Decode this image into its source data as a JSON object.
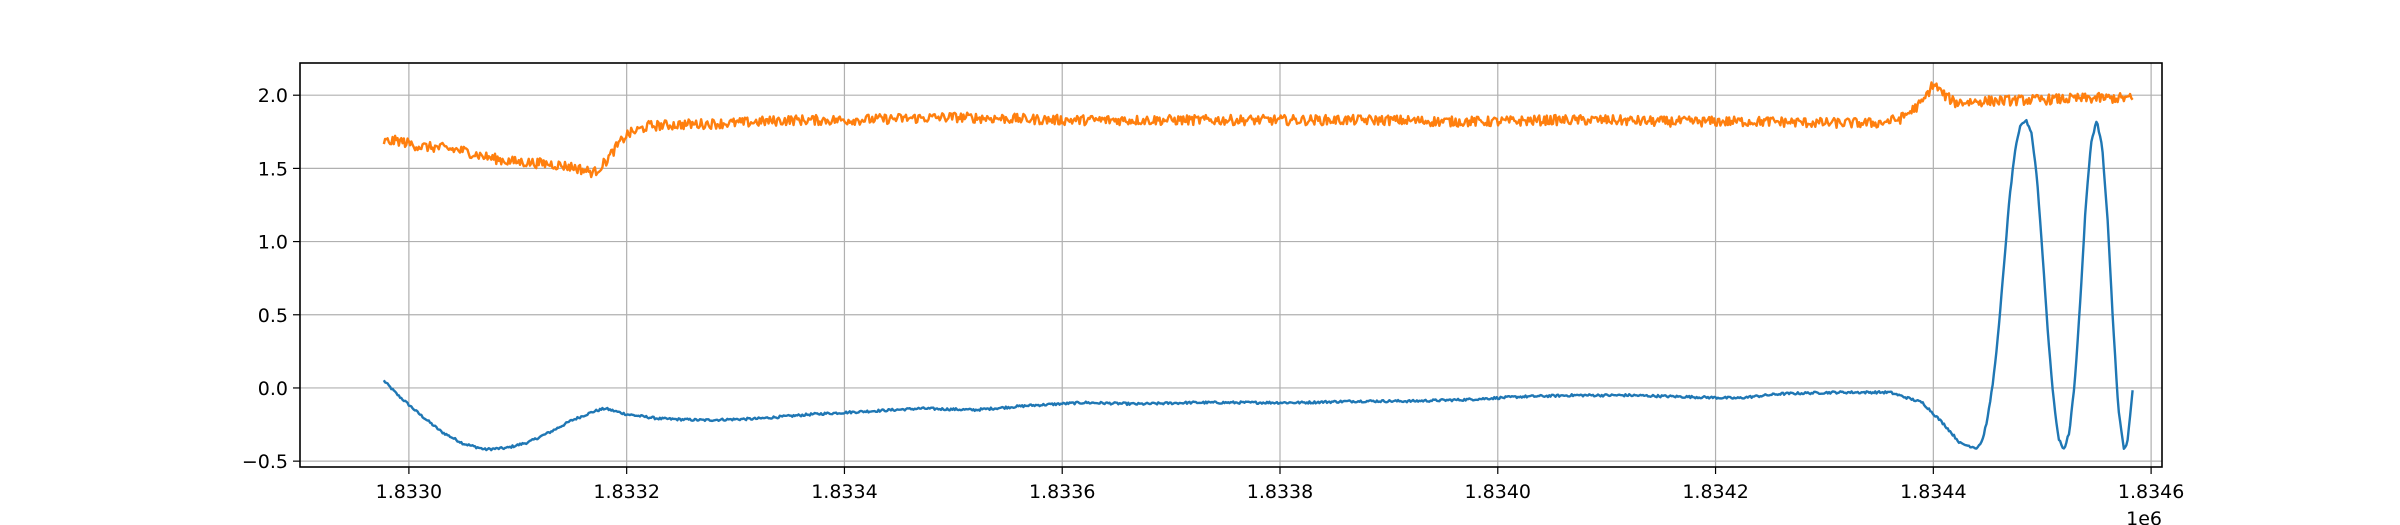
{
  "chart_data": {
    "type": "line",
    "x_offset_label": "1e6",
    "xlim": [
      1.8329,
      1.83461
    ],
    "ylim": [
      -0.54,
      2.22
    ],
    "grid": true,
    "x_ticks": [
      1.833,
      1.8332,
      1.8334,
      1.8336,
      1.8338,
      1.834,
      1.8342,
      1.8344,
      1.8346
    ],
    "x_tick_labels": [
      "1.8330",
      "1.8332",
      "1.8334",
      "1.8336",
      "1.8338",
      "1.8340",
      "1.8342",
      "1.8344",
      "1.8346"
    ],
    "y_ticks": [
      -0.5,
      0.0,
      0.5,
      1.0,
      1.5,
      2.0
    ],
    "y_tick_labels": [
      "−0.5",
      "0.0",
      "0.5",
      "1.0",
      "1.5",
      "2.0"
    ],
    "series": [
      {
        "color": "#1f77b4",
        "noise": 0.008,
        "points": [
          [
            1.832977,
            0.05
          ],
          [
            1.83299,
            -0.05
          ],
          [
            1.83301,
            -0.18
          ],
          [
            1.83303,
            -0.3
          ],
          [
            1.83305,
            -0.38
          ],
          [
            1.83307,
            -0.42
          ],
          [
            1.83309,
            -0.41
          ],
          [
            1.83311,
            -0.37
          ],
          [
            1.83313,
            -0.3
          ],
          [
            1.83315,
            -0.22
          ],
          [
            1.83317,
            -0.16
          ],
          [
            1.83318,
            -0.14
          ],
          [
            1.8332,
            -0.18
          ],
          [
            1.83323,
            -0.21
          ],
          [
            1.83327,
            -0.22
          ],
          [
            1.83332,
            -0.21
          ],
          [
            1.83337,
            -0.18
          ],
          [
            1.83342,
            -0.16
          ],
          [
            1.83347,
            -0.14
          ],
          [
            1.83352,
            -0.15
          ],
          [
            1.83357,
            -0.12
          ],
          [
            1.83362,
            -0.1
          ],
          [
            1.83367,
            -0.11
          ],
          [
            1.83372,
            -0.1
          ],
          [
            1.83377,
            -0.1
          ],
          [
            1.83382,
            -0.1
          ],
          [
            1.83387,
            -0.09
          ],
          [
            1.83392,
            -0.09
          ],
          [
            1.83397,
            -0.08
          ],
          [
            1.83402,
            -0.06
          ],
          [
            1.83407,
            -0.05
          ],
          [
            1.83412,
            -0.05
          ],
          [
            1.83417,
            -0.06
          ],
          [
            1.83422,
            -0.07
          ],
          [
            1.83426,
            -0.04
          ],
          [
            1.83431,
            -0.03
          ],
          [
            1.83436,
            -0.03
          ],
          [
            1.83439,
            -0.1
          ],
          [
            1.83441,
            -0.25
          ],
          [
            1.834425,
            -0.38
          ],
          [
            1.83444,
            -0.41
          ],
          [
            1.834445,
            -0.36
          ],
          [
            1.83445,
            -0.2
          ],
          [
            1.834455,
            0.05
          ],
          [
            1.83446,
            0.4
          ],
          [
            1.834465,
            0.85
          ],
          [
            1.83447,
            1.3
          ],
          [
            1.834475,
            1.62
          ],
          [
            1.83448,
            1.79
          ],
          [
            1.834485,
            1.83
          ],
          [
            1.83449,
            1.75
          ],
          [
            1.834495,
            1.45
          ],
          [
            1.8345,
            0.95
          ],
          [
            1.834505,
            0.4
          ],
          [
            1.83451,
            -0.05
          ],
          [
            1.834515,
            -0.35
          ],
          [
            1.83452,
            -0.42
          ],
          [
            1.834525,
            -0.3
          ],
          [
            1.83453,
            0.05
          ],
          [
            1.834535,
            0.6
          ],
          [
            1.83454,
            1.25
          ],
          [
            1.834545,
            1.68
          ],
          [
            1.83455,
            1.83
          ],
          [
            1.834555,
            1.65
          ],
          [
            1.83456,
            1.15
          ],
          [
            1.834565,
            0.45
          ],
          [
            1.83457,
            -0.15
          ],
          [
            1.834575,
            -0.42
          ],
          [
            1.834578,
            -0.38
          ],
          [
            1.83458,
            -0.25
          ],
          [
            1.834583,
            -0.02
          ]
        ]
      },
      {
        "color": "#ff7f0e",
        "noise": 0.035,
        "points": [
          [
            1.832977,
            1.68
          ],
          [
            1.83299,
            1.69
          ],
          [
            1.83301,
            1.65
          ],
          [
            1.83303,
            1.64
          ],
          [
            1.83305,
            1.62
          ],
          [
            1.83307,
            1.58
          ],
          [
            1.83309,
            1.55
          ],
          [
            1.83311,
            1.54
          ],
          [
            1.83313,
            1.53
          ],
          [
            1.83315,
            1.51
          ],
          [
            1.83316,
            1.49
          ],
          [
            1.83317,
            1.47
          ],
          [
            1.83318,
            1.54
          ],
          [
            1.83319,
            1.64
          ],
          [
            1.8332,
            1.73
          ],
          [
            1.83322,
            1.79
          ],
          [
            1.83325,
            1.8
          ],
          [
            1.8333,
            1.81
          ],
          [
            1.83335,
            1.83
          ],
          [
            1.8334,
            1.83
          ],
          [
            1.83345,
            1.84
          ],
          [
            1.8335,
            1.85
          ],
          [
            1.83355,
            1.84
          ],
          [
            1.8336,
            1.83
          ],
          [
            1.83365,
            1.83
          ],
          [
            1.8337,
            1.83
          ],
          [
            1.83375,
            1.83
          ],
          [
            1.8338,
            1.83
          ],
          [
            1.83385,
            1.83
          ],
          [
            1.8339,
            1.83
          ],
          [
            1.83395,
            1.82
          ],
          [
            1.834,
            1.82
          ],
          [
            1.83405,
            1.83
          ],
          [
            1.8341,
            1.83
          ],
          [
            1.83415,
            1.82
          ],
          [
            1.8342,
            1.82
          ],
          [
            1.83425,
            1.82
          ],
          [
            1.8343,
            1.81
          ],
          [
            1.83435,
            1.81
          ],
          [
            1.83437,
            1.84
          ],
          [
            1.83439,
            1.95
          ],
          [
            1.8344,
            2.08
          ],
          [
            1.83441,
            2.0
          ],
          [
            1.83442,
            1.95
          ],
          [
            1.83445,
            1.96
          ],
          [
            1.8345,
            1.97
          ],
          [
            1.83455,
            1.98
          ],
          [
            1.83458,
            1.98
          ],
          [
            1.834583,
            1.97
          ]
        ]
      }
    ]
  }
}
